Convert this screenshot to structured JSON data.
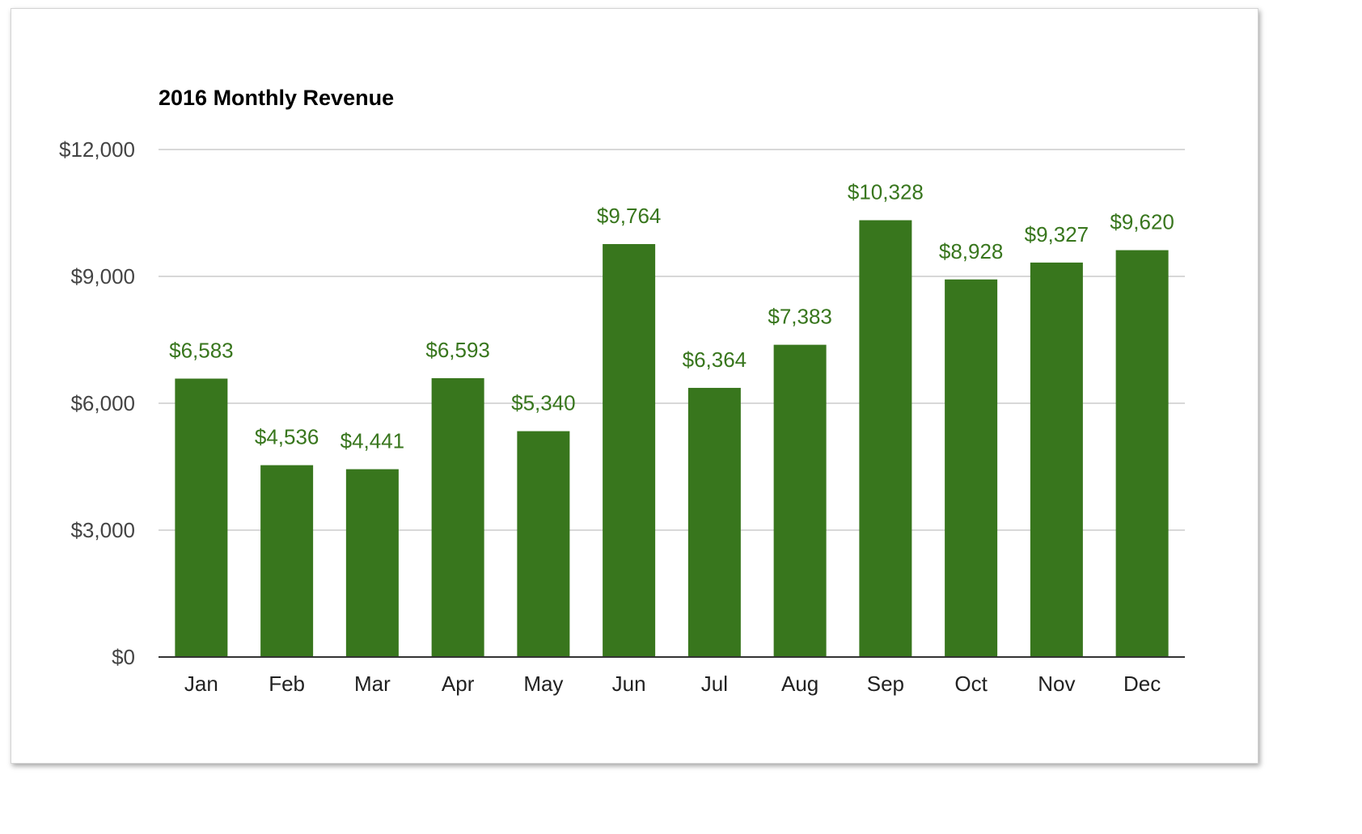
{
  "chart_data": {
    "type": "bar",
    "title": "2016 Monthly Revenue",
    "xlabel": "",
    "ylabel": "",
    "categories": [
      "Jan",
      "Feb",
      "Mar",
      "Apr",
      "May",
      "Jun",
      "Jul",
      "Aug",
      "Sep",
      "Oct",
      "Nov",
      "Dec"
    ],
    "values": [
      6583,
      4536,
      4441,
      6593,
      5340,
      9764,
      6364,
      7383,
      10328,
      8928,
      9327,
      9620
    ],
    "data_labels": [
      "$6,583",
      "$4,536",
      "$4,441",
      "$6,593",
      "$5,340",
      "$9,764",
      "$6,364",
      "$7,383",
      "$10,328",
      "$8,928",
      "$9,327",
      "$9,620"
    ],
    "ylim": [
      0,
      12000
    ],
    "yticks": [
      0,
      3000,
      6000,
      9000,
      12000
    ],
    "ytick_labels": [
      "$0",
      "$3,000",
      "$6,000",
      "$9,000",
      "$12,000"
    ],
    "grid": true,
    "legend": "none",
    "colors": {
      "bar": "#38761d",
      "label": "#38761d",
      "grid": "#cccccc",
      "axis": "#333333"
    }
  }
}
